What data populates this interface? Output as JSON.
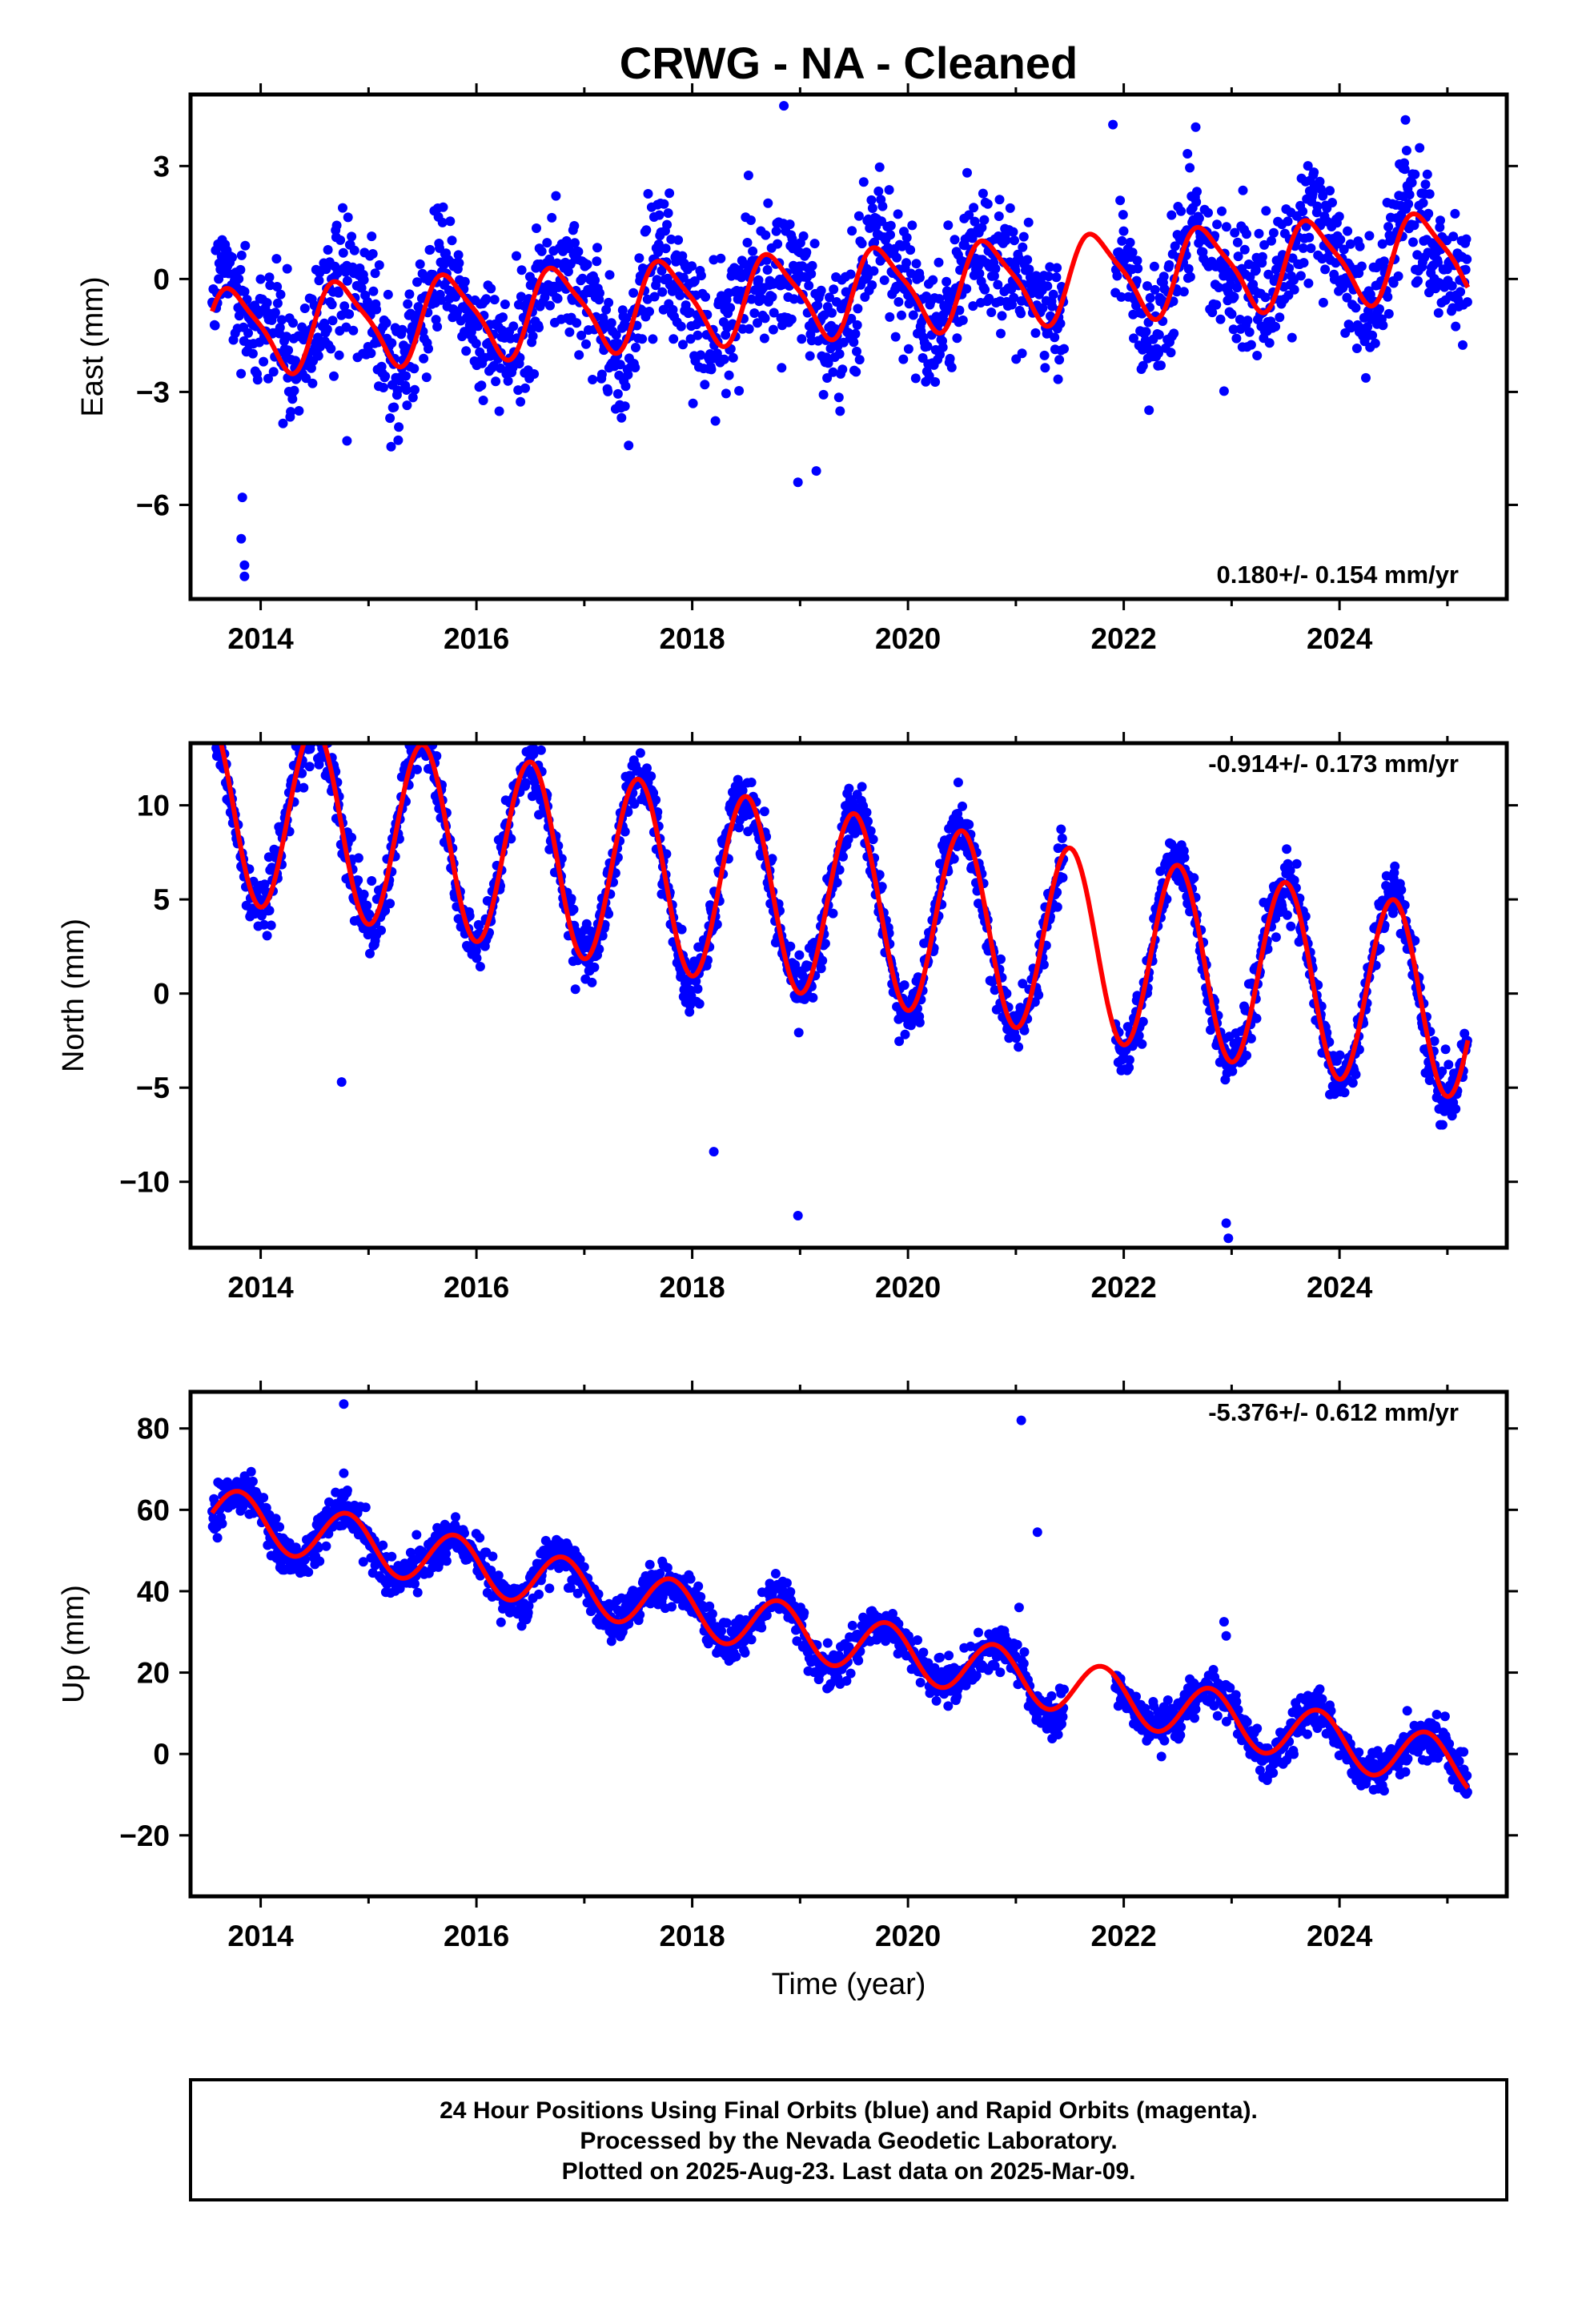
{
  "title": "CRWG  - NA - Cleaned",
  "xlabel": "Time (year)",
  "footer": [
    "24 Hour Positions Using Final Orbits (blue) and Rapid Orbits (magenta).",
    "Processed by the Nevada Geodetic Laboratory.",
    "Plotted on 2025-Aug-23. Last data on 2025-Mar-09."
  ],
  "colors": {
    "points": "#0000ff",
    "model": "#ff0000",
    "frame": "#000000"
  },
  "chart_data": [
    {
      "type": "scatter",
      "panel": "east",
      "ylabel": "East (mm)",
      "rate_label": "0.180+/- 0.154 mm/yr",
      "xlim": [
        2013.35,
        2025.55
      ],
      "ylim": [
        -8.5,
        4.9
      ],
      "xticks": [
        2014,
        2016,
        2018,
        2020,
        2022,
        2024
      ],
      "yticks": [
        -6,
        -3,
        0,
        3
      ],
      "ytick_labels": [
        "−6",
        "−3",
        "0",
        "3"
      ],
      "data_span": [
        2013.55,
        2025.19
      ],
      "gaps": [
        [
          2021.45,
          2021.92
        ]
      ],
      "model": {
        "offset": -0.35,
        "trend": 0.18,
        "annual_amp": 1.1,
        "annual_phase": 2016.75,
        "semi_amp": 0.25,
        "semi_phase": 2016.6
      },
      "scatter_sd": 1.15,
      "extra_points": [
        [
          2013.85,
          -7.9
        ],
        [
          2013.85,
          -7.6
        ],
        [
          2013.82,
          -6.9
        ],
        [
          2013.83,
          -5.8
        ],
        [
          2018.98,
          -5.4
        ],
        [
          2019.15,
          -5.1
        ],
        [
          2014.8,
          -4.3
        ],
        [
          2021.9,
          4.1
        ],
        [
          2018.85,
          4.6
        ]
      ]
    },
    {
      "type": "scatter",
      "panel": "north",
      "ylabel": "North (mm)",
      "rate_label": "-0.914+/- 0.173 mm/yr",
      "xlim": [
        2013.35,
        2025.55
      ],
      "ylim": [
        -13.5,
        13.3
      ],
      "xticks": [
        2014,
        2016,
        2018,
        2020,
        2022,
        2024
      ],
      "yticks": [
        -10,
        -5,
        0,
        5,
        10
      ],
      "ytick_labels": [
        "−10",
        "−5",
        "0",
        "5",
        "10"
      ],
      "data_span": [
        2013.55,
        2025.19
      ],
      "gaps": [
        [
          2021.45,
          2021.92
        ]
      ],
      "model": {
        "offset": 4.65,
        "trend": -0.914,
        "annual_amp": 5.0,
        "annual_phase": 2014.5,
        "semi_amp": 0.0,
        "semi_phase": 2014.5
      },
      "scatter_sd": 1.0,
      "extra_points": [
        [
          2013.6,
          12.9
        ],
        [
          2014.75,
          -4.7
        ],
        [
          2018.98,
          -11.8
        ],
        [
          2022.97,
          -13.0
        ],
        [
          2022.95,
          -12.2
        ],
        [
          2018.2,
          -8.4
        ]
      ]
    },
    {
      "type": "scatter",
      "panel": "up",
      "ylabel": "Up (mm)",
      "rate_label": "-5.376+/- 0.612 mm/yr",
      "xlim": [
        2013.35,
        2025.55
      ],
      "ylim": [
        -35,
        89
      ],
      "xticks": [
        2014,
        2016,
        2018,
        2020,
        2022,
        2024
      ],
      "yticks": [
        -20,
        0,
        20,
        40,
        60,
        80
      ],
      "ytick_labels": [
        "−20",
        "0",
        "20",
        "40",
        "60",
        "80"
      ],
      "data_span": [
        2013.55,
        2025.19
      ],
      "gaps": [
        [
          2021.45,
          2021.92
        ]
      ],
      "model": {
        "offset": 27.8,
        "trend": -5.376,
        "annual_amp": 6.6,
        "annual_phase": 2013.8,
        "semi_amp": 0.0,
        "semi_phase": 2013.8
      },
      "scatter_sd": 3.4,
      "extra_points": [
        [
          2014.77,
          86
        ],
        [
          2014.77,
          69
        ],
        [
          2014.05,
          60.5
        ],
        [
          2014.03,
          58
        ],
        [
          2021.05,
          82
        ],
        [
          2021.2,
          54.5
        ],
        [
          2021.03,
          36
        ],
        [
          2022.93,
          32.5
        ],
        [
          2022.95,
          29
        ],
        [
          2021.97,
          18.5
        ],
        [
          2023.92,
          8
        ],
        [
          2025.15,
          0.5
        ],
        [
          2019.35,
          20.5
        ]
      ]
    }
  ]
}
